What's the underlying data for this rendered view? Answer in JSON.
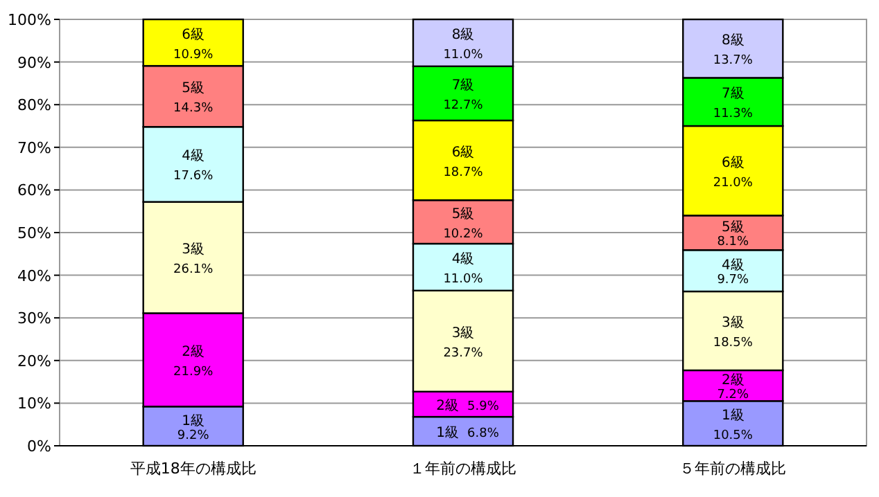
{
  "chart_data": {
    "type": "bar",
    "stacked": true,
    "categories": [
      "平成18年の構成比",
      "１年前の構成比",
      "５年前の構成比"
    ],
    "ylim": [
      0,
      100
    ],
    "yticks": [
      {
        "value": 0,
        "label": "0%"
      },
      {
        "value": 10,
        "label": "10%"
      },
      {
        "value": 20,
        "label": "20%"
      },
      {
        "value": 30,
        "label": "30%"
      },
      {
        "value": 40,
        "label": "40%"
      },
      {
        "value": 50,
        "label": "50%"
      },
      {
        "value": 60,
        "label": "60%"
      },
      {
        "value": 70,
        "label": "70%"
      },
      {
        "value": 80,
        "label": "80%"
      },
      {
        "value": 90,
        "label": "90%"
      },
      {
        "value": 100,
        "label": "100%"
      }
    ],
    "grid": "y",
    "series": [
      {
        "name": "1級",
        "color": "#9999ff",
        "values": [
          9.2,
          6.8,
          10.5
        ],
        "value_labels": [
          "9.2%",
          "6.8%",
          "10.5%"
        ]
      },
      {
        "name": "2級",
        "color": "#ff00ff",
        "values": [
          21.9,
          5.9,
          7.2
        ],
        "value_labels": [
          "21.9%",
          "5.9%",
          "7.2%"
        ]
      },
      {
        "name": "3級",
        "color": "#ffffcc",
        "values": [
          26.1,
          23.7,
          18.5
        ],
        "value_labels": [
          "26.1%",
          "23.7%",
          "18.5%"
        ]
      },
      {
        "name": "4級",
        "color": "#ccffff",
        "values": [
          17.6,
          11.0,
          9.7
        ],
        "value_labels": [
          "17.6%",
          "11.0%",
          "9.7%"
        ]
      },
      {
        "name": "5級",
        "color": "#ff8080",
        "values": [
          14.3,
          10.2,
          8.1
        ],
        "value_labels": [
          "14.3%",
          "10.2%",
          "8.1%"
        ]
      },
      {
        "name": "6級",
        "color": "#ffff00",
        "values": [
          10.9,
          18.7,
          21.0
        ],
        "value_labels": [
          "10.9%",
          "18.7%",
          "21.0%"
        ]
      },
      {
        "name": "7級",
        "color": "#00ff00",
        "values": [
          null,
          12.7,
          11.3
        ],
        "value_labels": [
          null,
          "12.7%",
          "11.3%"
        ]
      },
      {
        "name": "8級",
        "color": "#ccccff",
        "values": [
          null,
          11.0,
          13.7
        ],
        "value_labels": [
          null,
          "11.0%",
          "13.7%"
        ]
      }
    ]
  }
}
